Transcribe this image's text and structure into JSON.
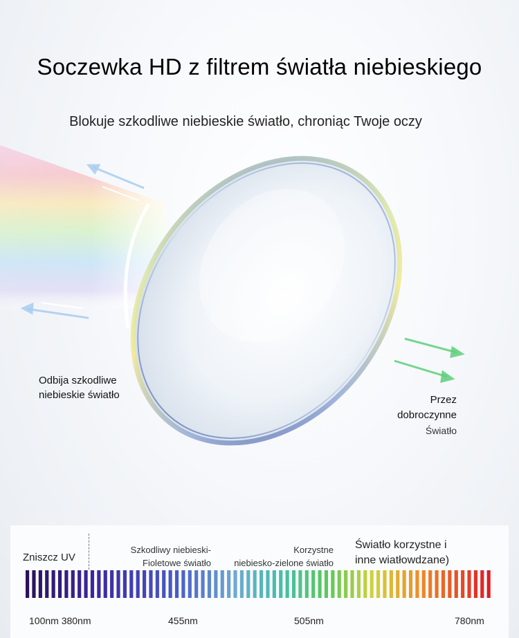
{
  "header": {
    "title": "Soczewka HD z filtrem światła niebieskiego",
    "subtitle": "Blokuje szkodliwe niebieskie światło, chroniąc Twoje oczy"
  },
  "illustration": {
    "reflect_label": [
      "Odbija szkodliwe",
      "niebieskie światło"
    ],
    "pass_label": [
      "Przez",
      "dobroczynne",
      "Światło"
    ],
    "reflected_arrow_color": "#a9cdf0",
    "passed_arrow_color": "#5fcf7c"
  },
  "spectrum": {
    "uv_label": "Zniszcz UV",
    "harmful_label": [
      "Szkodliwy niebieski-",
      "Fioletowe światło"
    ],
    "beneficial_label": [
      "Korzystne",
      "niebiesko-zielone światło"
    ],
    "other_label": [
      "Światło korzystne i",
      "inne wiatłowdzane)"
    ],
    "wavelengths": [
      "100nm 380nm",
      "455nm",
      "505nm",
      "780nm"
    ],
    "bar_count": 72
  }
}
